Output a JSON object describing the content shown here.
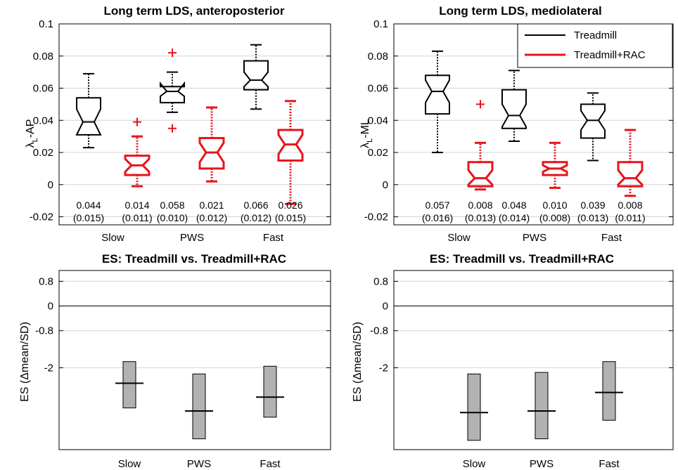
{
  "chart_data": [
    {
      "type": "boxplot",
      "title": "Long term LDS, anteroposterior",
      "ylabel_symbol": "λ",
      "ylabel_sub": "L",
      "ylabel_suffix": "-AP",
      "ylim": [
        -0.025,
        0.1
      ],
      "yticks": [
        -0.02,
        0,
        0.02,
        0.04,
        0.06,
        0.08,
        0.1
      ],
      "ytick_labels": [
        "-0.02",
        "0",
        "0.02",
        "0.04",
        "0.06",
        "0.08",
        "0.1"
      ],
      "categories": [
        "Slow",
        "PWS",
        "Fast"
      ],
      "grid": "horizontal",
      "boxes": [
        {
          "group": "Slow",
          "series": "Treadmill",
          "whisker_low": 0.023,
          "q1": 0.031,
          "median": 0.039,
          "q3": 0.054,
          "whisker_high": 0.069,
          "notch_low": 0.031,
          "notch_high": 0.047,
          "outliers": [],
          "mean": "0.044",
          "sd": "(0.015)"
        },
        {
          "group": "Slow",
          "series": "Treadmill+RAC",
          "whisker_low": -0.001,
          "q1": 0.006,
          "median": 0.012,
          "q3": 0.018,
          "whisker_high": 0.03,
          "notch_low": 0.008,
          "notch_high": 0.016,
          "outliers": [
            0.039
          ],
          "mean": "0.014",
          "sd": "(0.011)"
        },
        {
          "group": "PWS",
          "series": "Treadmill",
          "whisker_low": 0.045,
          "q1": 0.051,
          "median": 0.058,
          "q3": 0.061,
          "whisker_high": 0.07,
          "notch_low": 0.055,
          "notch_high": 0.063,
          "outliers": [
            0.035,
            0.082
          ],
          "mean": "0.058",
          "sd": "(0.010)"
        },
        {
          "group": "PWS",
          "series": "Treadmill+RAC",
          "whisker_low": 0.002,
          "q1": 0.01,
          "median": 0.02,
          "q3": 0.029,
          "whisker_high": 0.048,
          "notch_low": 0.014,
          "notch_high": 0.026,
          "outliers": [],
          "mean": "0.021",
          "sd": "(0.012)"
        },
        {
          "group": "Fast",
          "series": "Treadmill",
          "whisker_low": 0.047,
          "q1": 0.059,
          "median": 0.065,
          "q3": 0.077,
          "whisker_high": 0.087,
          "notch_low": 0.061,
          "notch_high": 0.07,
          "outliers": [],
          "mean": "0.066",
          "sd": "(0.012)"
        },
        {
          "group": "Fast",
          "series": "Treadmill+RAC",
          "whisker_low": -0.012,
          "q1": 0.015,
          "median": 0.025,
          "q3": 0.034,
          "whisker_high": 0.052,
          "notch_low": 0.019,
          "notch_high": 0.031,
          "outliers": [],
          "mean": "0.026",
          "sd": "(0.015)"
        }
      ]
    },
    {
      "type": "boxplot",
      "title": "Long term LDS, mediolateral",
      "ylabel_symbol": "λ",
      "ylabel_sub": "L",
      "ylabel_suffix": "-ML",
      "ylim": [
        -0.025,
        0.1
      ],
      "yticks": [
        -0.02,
        0,
        0.02,
        0.04,
        0.06,
        0.08,
        0.1
      ],
      "ytick_labels": [
        "-0.02",
        "0",
        "0.02",
        "0.04",
        "0.06",
        "0.08",
        "0.1"
      ],
      "categories": [
        "Slow",
        "PWS",
        "Fast"
      ],
      "grid": "horizontal",
      "legend": {
        "location": "top-right",
        "entries": [
          {
            "name": "Treadmill",
            "color": "#000000"
          },
          {
            "name": "Treadmill+RAC",
            "color": "#e8141c"
          }
        ]
      },
      "boxes": [
        {
          "group": "Slow",
          "series": "Treadmill",
          "whisker_low": 0.02,
          "q1": 0.044,
          "median": 0.058,
          "q3": 0.068,
          "whisker_high": 0.083,
          "notch_low": 0.051,
          "notch_high": 0.065,
          "outliers": [],
          "mean": "0.057",
          "sd": "(0.016)"
        },
        {
          "group": "Slow",
          "series": "Treadmill+RAC",
          "whisker_low": -0.003,
          "q1": -0.001,
          "median": 0.004,
          "q3": 0.014,
          "whisker_high": 0.026,
          "notch_low": 0.0,
          "notch_high": 0.009,
          "outliers": [
            0.05
          ],
          "mean": "0.008",
          "sd": "(0.013)"
        },
        {
          "group": "PWS",
          "series": "Treadmill",
          "whisker_low": 0.027,
          "q1": 0.035,
          "median": 0.043,
          "q3": 0.059,
          "whisker_high": 0.071,
          "notch_low": 0.036,
          "notch_high": 0.05,
          "outliers": [],
          "mean": "0.048",
          "sd": "(0.014)"
        },
        {
          "group": "PWS",
          "series": "Treadmill+RAC",
          "whisker_low": -0.002,
          "q1": 0.006,
          "median": 0.01,
          "q3": 0.014,
          "whisker_high": 0.026,
          "notch_low": 0.008,
          "notch_high": 0.012,
          "outliers": [],
          "mean": "0.010",
          "sd": "(0.008)"
        },
        {
          "group": "Fast",
          "series": "Treadmill",
          "whisker_low": 0.015,
          "q1": 0.029,
          "median": 0.04,
          "q3": 0.05,
          "whisker_high": 0.057,
          "notch_low": 0.034,
          "notch_high": 0.046,
          "outliers": [],
          "mean": "0.039",
          "sd": "(0.013)"
        },
        {
          "group": "Fast",
          "series": "Treadmill+RAC",
          "whisker_low": -0.007,
          "q1": -0.001,
          "median": 0.004,
          "q3": 0.014,
          "whisker_high": 0.034,
          "notch_low": 0.0,
          "notch_high": 0.009,
          "outliers": [],
          "mean": "0.008",
          "sd": "(0.011)"
        }
      ]
    },
    {
      "type": "interval",
      "title": "ES: Treadmill vs. Treadmill+RAC",
      "ylabel": "ES (Δmean/SD)",
      "ylim": [
        -4.65,
        1.15
      ],
      "yticks": [
        0.8,
        0,
        -0.8,
        -2
      ],
      "ytick_labels": [
        "0.8",
        "0",
        "-0.8",
        "-2"
      ],
      "reference_line": 0,
      "categories": [
        "Slow",
        "PWS",
        "Fast"
      ],
      "intervals": [
        {
          "group": "Slow",
          "low": -3.3,
          "high": -1.8,
          "point": -2.5
        },
        {
          "group": "PWS",
          "low": -4.3,
          "high": -2.2,
          "point": -3.4
        },
        {
          "group": "Fast",
          "low": -3.6,
          "high": -1.95,
          "point": -2.95
        }
      ]
    },
    {
      "type": "interval",
      "title": "ES: Treadmill vs. Treadmill+RAC",
      "ylabel": "ES (Δmean/SD)",
      "ylim": [
        -4.65,
        1.15
      ],
      "yticks": [
        0.8,
        0,
        -0.8,
        -2
      ],
      "ytick_labels": [
        "0.8",
        "0",
        "-0.8",
        "-2"
      ],
      "reference_line": 0,
      "categories": [
        "Slow",
        "PWS",
        "Fast"
      ],
      "intervals": [
        {
          "group": "Slow",
          "low": -4.35,
          "high": -2.2,
          "point": -3.45
        },
        {
          "group": "PWS",
          "low": -4.3,
          "high": -2.15,
          "point": -3.4
        },
        {
          "group": "Fast",
          "low": -3.7,
          "high": -1.8,
          "point": -2.8
        }
      ]
    }
  ],
  "colors": {
    "treadmill": "#000000",
    "treadmill_rac": "#e8141c",
    "es_bar": "#b2b2b2",
    "grid": "#d4d4d4"
  }
}
